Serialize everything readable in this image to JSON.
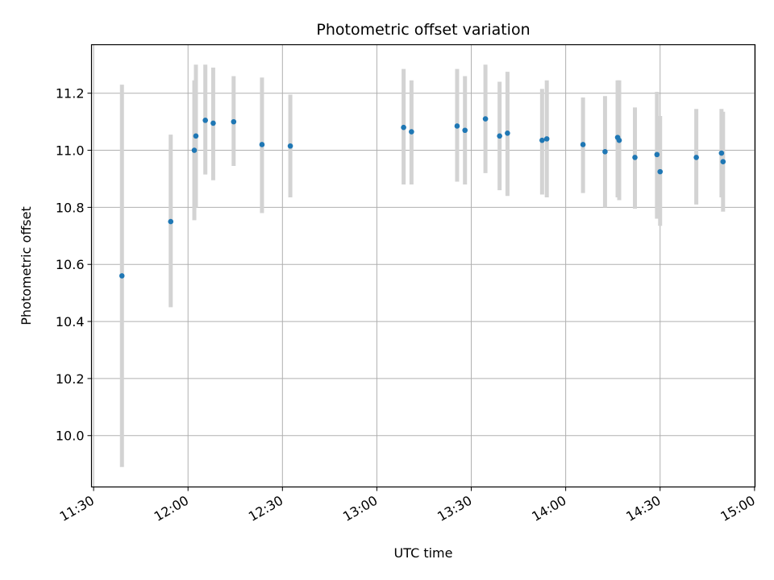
{
  "chart_data": {
    "type": "scatter",
    "title": "Photometric offset variation",
    "xlabel": "UTC time",
    "ylabel": "Photometric offset",
    "x_ticks": [
      "11:30",
      "12:00",
      "12:30",
      "13:00",
      "13:30",
      "14:00",
      "14:30",
      "15:00"
    ],
    "y_ticks": [
      "10.0",
      "10.2",
      "10.4",
      "10.6",
      "10.8",
      "11.0",
      "11.2"
    ],
    "xlim": [
      "11:29:20",
      "15:00:10"
    ],
    "ylim": [
      9.82,
      11.37
    ],
    "grid": true,
    "marker_color": "#1f77b4",
    "errorbar_color": "#d3d3d3",
    "points": [
      {
        "time": "11:39:00",
        "value": 10.56,
        "low": 9.89,
        "high": 11.23
      },
      {
        "time": "11:54:30",
        "value": 10.75,
        "low": 10.45,
        "high": 11.055
      },
      {
        "time": "12:02:00",
        "value": 11.0,
        "low": 10.755,
        "high": 11.245
      },
      {
        "time": "12:02:30",
        "value": 11.05,
        "low": 10.8,
        "high": 11.3
      },
      {
        "time": "12:05:30",
        "value": 11.105,
        "low": 10.915,
        "high": 11.3
      },
      {
        "time": "12:08:00",
        "value": 11.095,
        "low": 10.895,
        "high": 11.29
      },
      {
        "time": "12:14:30",
        "value": 11.1,
        "low": 10.945,
        "high": 11.26
      },
      {
        "time": "12:23:30",
        "value": 11.02,
        "low": 10.78,
        "high": 11.255
      },
      {
        "time": "12:32:30",
        "value": 11.015,
        "low": 10.835,
        "high": 11.195
      },
      {
        "time": "13:08:30",
        "value": 11.08,
        "low": 10.88,
        "high": 11.285
      },
      {
        "time": "13:11:00",
        "value": 11.065,
        "low": 10.88,
        "high": 11.245
      },
      {
        "time": "13:25:30",
        "value": 11.085,
        "low": 10.89,
        "high": 11.285
      },
      {
        "time": "13:28:00",
        "value": 11.07,
        "low": 10.88,
        "high": 11.26
      },
      {
        "time": "13:34:30",
        "value": 11.11,
        "low": 10.92,
        "high": 11.3
      },
      {
        "time": "13:39:00",
        "value": 11.05,
        "low": 10.86,
        "high": 11.24
      },
      {
        "time": "13:41:30",
        "value": 11.06,
        "low": 10.84,
        "high": 11.275
      },
      {
        "time": "13:52:30",
        "value": 11.035,
        "low": 10.845,
        "high": 11.215
      },
      {
        "time": "13:54:00",
        "value": 11.04,
        "low": 10.835,
        "high": 11.245
      },
      {
        "time": "14:05:30",
        "value": 11.02,
        "low": 10.85,
        "high": 11.185
      },
      {
        "time": "14:12:30",
        "value": 10.995,
        "low": 10.8,
        "high": 11.19
      },
      {
        "time": "14:16:30",
        "value": 11.045,
        "low": 10.835,
        "high": 11.245
      },
      {
        "time": "14:17:00",
        "value": 11.035,
        "low": 10.825,
        "high": 11.245
      },
      {
        "time": "14:22:00",
        "value": 10.975,
        "low": 10.795,
        "high": 11.15
      },
      {
        "time": "14:29:00",
        "value": 10.985,
        "low": 10.76,
        "high": 11.205
      },
      {
        "time": "14:30:00",
        "value": 10.925,
        "low": 10.735,
        "high": 11.12
      },
      {
        "time": "14:41:30",
        "value": 10.975,
        "low": 10.81,
        "high": 11.145
      },
      {
        "time": "14:49:30",
        "value": 10.99,
        "low": 10.835,
        "high": 11.145
      },
      {
        "time": "14:50:00",
        "value": 10.96,
        "low": 10.785,
        "high": 11.135
      }
    ]
  }
}
